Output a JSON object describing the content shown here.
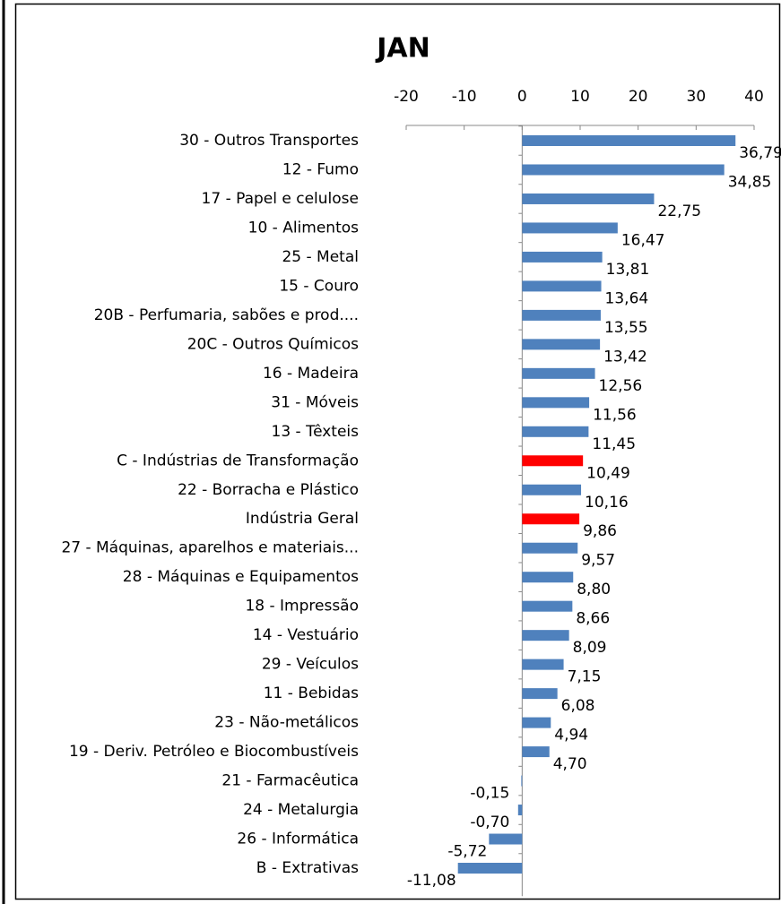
{
  "chart_data": {
    "type": "barh",
    "title": "JAN",
    "categories": [
      "30 - Outros Transportes",
      "12 - Fumo",
      "17 - Papel e celulose",
      "10 - Alimentos",
      "25 - Metal",
      "15 - Couro",
      "20B - Perfumaria, sabões e prod....",
      "20C - Outros Químicos",
      "16 - Madeira",
      "31 - Móveis",
      "13 - Têxteis",
      "C - Indústrias de Transformação",
      "22 - Borracha e Plástico",
      "Indústria Geral",
      "27 - Máquinas, aparelhos e materiais...",
      "28 - Máquinas e Equipamentos",
      "18 - Impressão",
      "14 - Vestuário",
      "29 - Veículos",
      "11 - Bebidas",
      "23 - Não-metálicos",
      "19 - Deriv. Petróleo e Biocombustíveis",
      "21 - Farmacêutica",
      "24 - Metalurgia",
      "26 - Informática",
      "B - Extrativas"
    ],
    "values": [
      36.79,
      34.85,
      22.75,
      16.47,
      13.81,
      13.64,
      13.55,
      13.42,
      12.56,
      11.56,
      11.45,
      10.49,
      10.16,
      9.86,
      9.57,
      8.8,
      8.66,
      8.09,
      7.15,
      6.08,
      4.94,
      4.7,
      -0.15,
      -0.7,
      -5.72,
      -11.08
    ],
    "value_labels": [
      "36,79",
      "34,85",
      "22,75",
      "16,47",
      "13,81",
      "13,64",
      "13,55",
      "13,42",
      "12,56",
      "11,56",
      "11,45",
      "10,49",
      "10,16",
      "9,86",
      "9,57",
      "8,80",
      "8,66",
      "8,09",
      "7,15",
      "6,08",
      "4,94",
      "4,70",
      "-0,15",
      "-0,70",
      "-5,72",
      "-11,08"
    ],
    "colors": [
      "#4f81bd",
      "#4f81bd",
      "#4f81bd",
      "#4f81bd",
      "#4f81bd",
      "#4f81bd",
      "#4f81bd",
      "#4f81bd",
      "#4f81bd",
      "#4f81bd",
      "#4f81bd",
      "#ff0000",
      "#4f81bd",
      "#ff0000",
      "#4f81bd",
      "#4f81bd",
      "#4f81bd",
      "#4f81bd",
      "#4f81bd",
      "#4f81bd",
      "#4f81bd",
      "#4f81bd",
      "#4f81bd",
      "#4f81bd",
      "#4f81bd",
      "#4f81bd"
    ],
    "xlim": [
      -20,
      40
    ],
    "xticks": [
      -20,
      -10,
      0,
      10,
      20,
      30,
      40
    ]
  }
}
